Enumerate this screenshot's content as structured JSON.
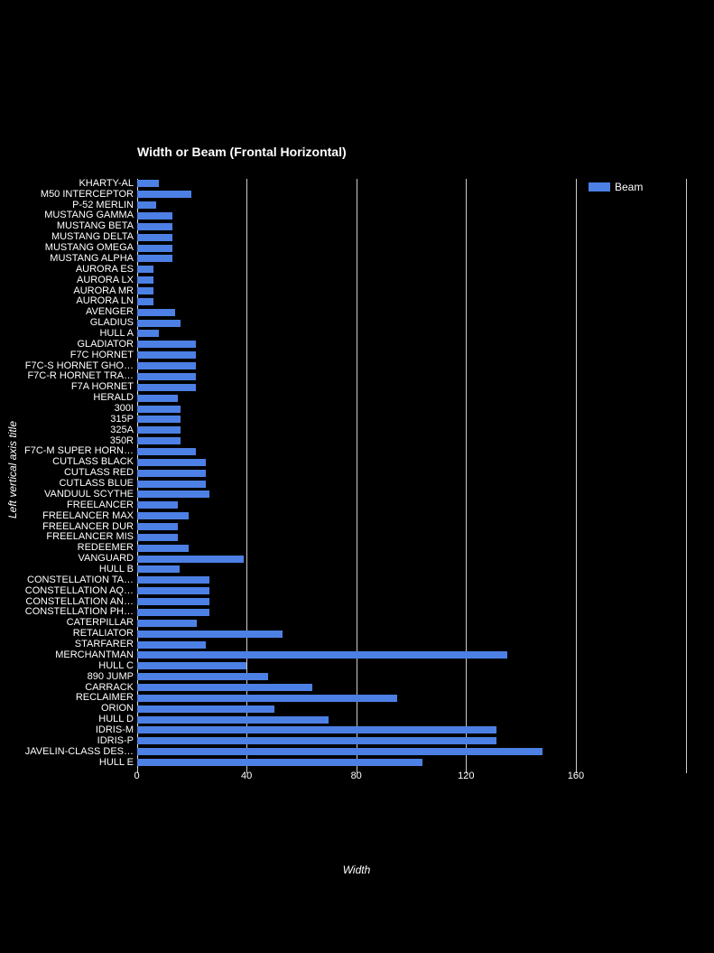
{
  "chart": {
    "title": "Width or Beam (Frontal Horizontal)",
    "legend": {
      "label": "Beam"
    },
    "x_axis": {
      "title": "Width",
      "ticks": [
        0,
        40,
        80,
        120,
        160
      ]
    },
    "y_axis": {
      "title": "Left vertical axis title"
    },
    "colors": {
      "background": "#000000",
      "bar": "#4d80e4",
      "text": "#ffffff",
      "gridline": "#cccccc"
    }
  },
  "chart_data": {
    "type": "bar",
    "orientation": "horizontal",
    "title": "Width or Beam (Frontal Horizontal)",
    "xlabel": "Width",
    "ylabel": "Left vertical axis title",
    "legend_entries": [
      "Beam"
    ],
    "xlim": [
      0,
      200
    ],
    "grid": true,
    "categories": [
      "KHARTY-AL",
      "M50 INTERCEPTOR",
      "P-52 MERLIN",
      "MUSTANG GAMMA",
      "MUSTANG BETA",
      "MUSTANG DELTA",
      "MUSTANG OMEGA",
      "MUSTANG ALPHA",
      "AURORA ES",
      "AURORA LX",
      "AURORA MR",
      "AURORA LN",
      "AVENGER",
      "GLADIUS",
      "HULL A",
      "GLADIATOR",
      "F7C HORNET",
      "F7C-S HORNET GHO…",
      "F7C-R HORNET TRA…",
      "F7A HORNET",
      "HERALD",
      "300I",
      "315P",
      "325A",
      "350R",
      "F7C-M SUPER HORN…",
      "CUTLASS BLACK",
      "CUTLASS RED",
      "CUTLASS BLUE",
      "VANDUUL SCYTHE",
      "FREELANCER",
      "FREELANCER MAX",
      "FREELANCER DUR",
      "FREELANCER MIS",
      "REDEEMER",
      "VANGUARD",
      "HULL B",
      "CONSTELLATION TA…",
      "CONSTELLATION AQ…",
      "CONSTELLATION AN…",
      "CONSTELLATION PH…",
      "CATERPILLAR",
      "RETALIATOR",
      "STARFARER",
      "MERCHANTMAN",
      "HULL C",
      "890 JUMP",
      "CARRACK",
      "RECLAIMER",
      "ORION",
      "HULL D",
      "IDRIS-M",
      "IDRIS-P",
      "JAVELIN-CLASS DES…",
      "HULL E"
    ],
    "values": [
      8,
      20,
      7,
      13,
      13,
      13,
      13,
      13,
      6,
      6,
      6,
      6,
      14,
      16,
      8,
      21.5,
      21.5,
      21.5,
      21.5,
      21.5,
      15,
      16,
      16,
      16,
      16,
      21.5,
      25,
      25,
      25,
      26.5,
      15,
      19,
      15,
      15,
      19,
      39,
      15.5,
      26.5,
      26.5,
      26.5,
      26.5,
      22,
      53,
      25,
      135,
      40,
      48,
      64,
      95,
      50,
      70,
      131,
      131,
      148,
      104
    ]
  }
}
